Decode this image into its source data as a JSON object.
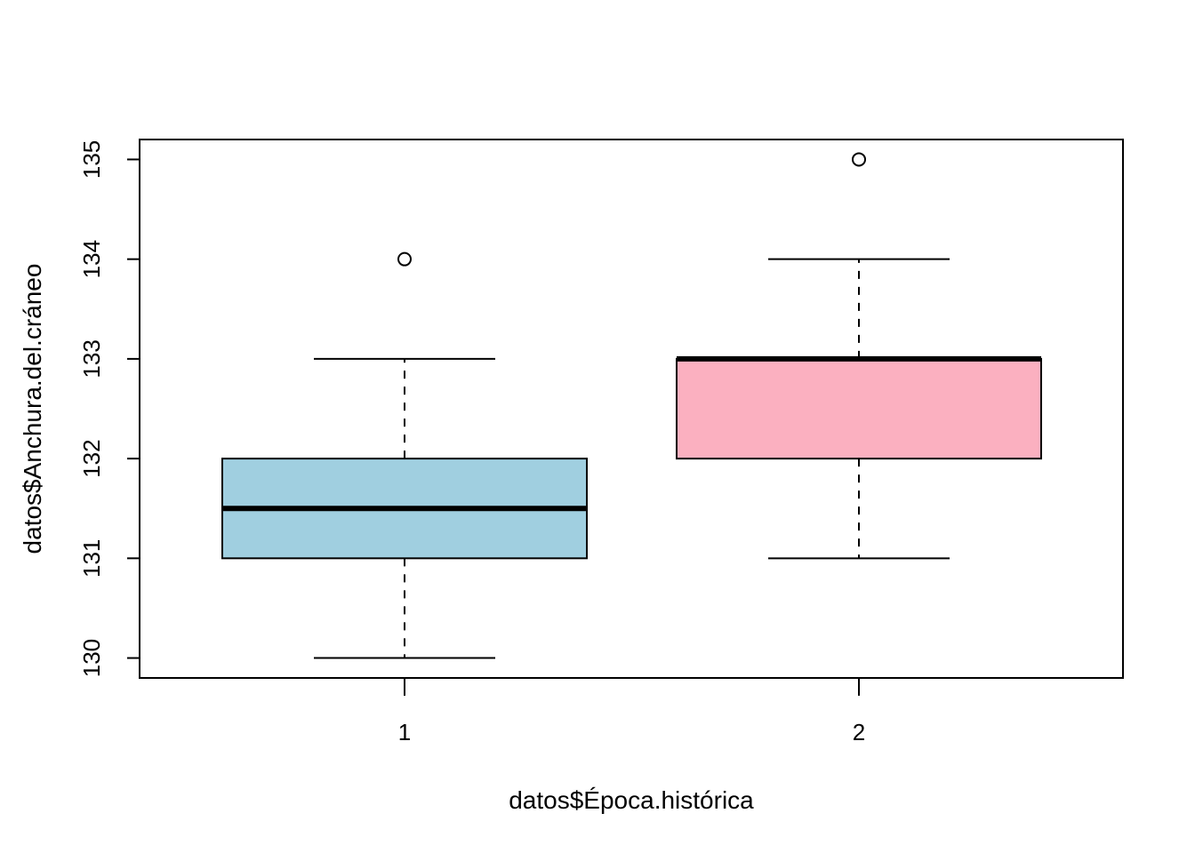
{
  "chart_data": {
    "type": "boxplot",
    "title": "",
    "xlabel": "datos$Época.histórica",
    "ylabel": "datos$Anchura.del.cráneo",
    "ylim": [
      129.8,
      135.2
    ],
    "yticks": [
      130,
      131,
      132,
      133,
      134,
      135
    ],
    "grid": false,
    "categories": [
      "1",
      "2"
    ],
    "boxes": [
      {
        "category": "1",
        "whisker_low": 130,
        "q1": 131,
        "median": 131.5,
        "q3": 132,
        "whisker_high": 133,
        "outliers": [
          134
        ],
        "fill": "#a0cfe0"
      },
      {
        "category": "2",
        "whisker_low": 131,
        "q1": 132,
        "median": 133,
        "q3": 133,
        "whisker_high": 134,
        "outliers": [
          135
        ],
        "fill": "#fbb0c0"
      }
    ]
  }
}
